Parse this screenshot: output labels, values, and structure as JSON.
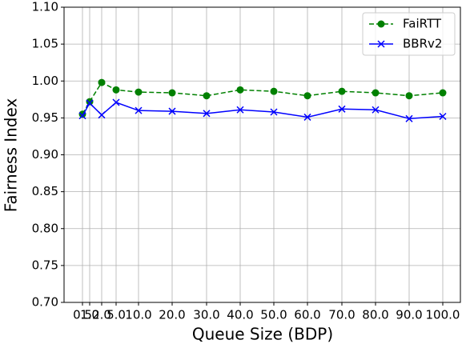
{
  "chart_data": {
    "type": "line",
    "x_label": "Queue Size (BDP)",
    "y_label": "Fairness Index",
    "categories": [
      "0.5",
      "1.0",
      "2.0",
      "5.0",
      "10.0",
      "20.0",
      "30.0",
      "40.0",
      "50.0",
      "60.0",
      "70.0",
      "80.0",
      "90.0",
      "100.0"
    ],
    "series": [
      {
        "name": "FaiRTT",
        "color": "#008000",
        "values": [
          0.955,
          0.972,
          0.998,
          0.988,
          0.985,
          0.984,
          0.98,
          0.988,
          0.986,
          0.98,
          0.986,
          0.984,
          0.98,
          0.984
        ]
      },
      {
        "name": "BBRv2",
        "color": "#0000ff",
        "values": [
          0.953,
          0.97,
          0.954,
          0.971,
          0.96,
          0.959,
          0.956,
          0.961,
          0.958,
          0.951,
          0.962,
          0.961,
          0.949,
          0.952
        ]
      }
    ],
    "ylim": [
      0.7,
      1.1
    ],
    "yticks": [
      {
        "value": 0.7,
        "label": "0.70"
      },
      0.75,
      {
        "value": 0.8,
        "label": "0.80"
      },
      0.85,
      {
        "value": 0.9,
        "label": "0.90"
      },
      0.95,
      {
        "value": 1.0,
        "label": "1.00"
      },
      1.05,
      {
        "value": 1.1,
        "label": "1.10"
      }
    ],
    "grid": true,
    "legend": "upper-right"
  }
}
